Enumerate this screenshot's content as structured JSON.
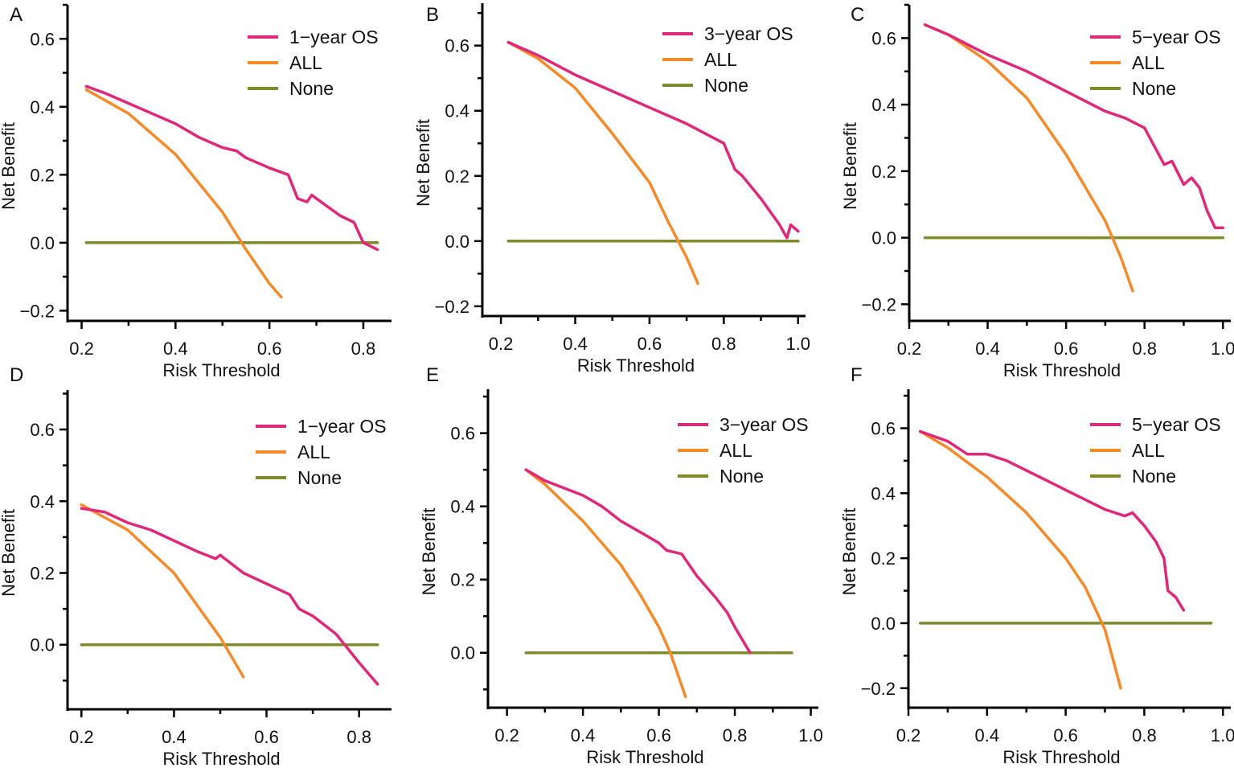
{
  "figure_title": "",
  "colors": {
    "model": "#e0287a",
    "all": "#f58a2a",
    "none": "#7f8a2e",
    "axis": "#000000"
  },
  "chart_data": [
    {
      "id": "A",
      "type": "line",
      "panel_label": "A",
      "xlabel": "Risk Threshold",
      "ylabel": "Net Benefit",
      "xlim": [
        0.17,
        0.86
      ],
      "ylim": [
        -0.23,
        0.7
      ],
      "xticks": [
        0.2,
        0.4,
        0.6,
        0.8
      ],
      "xtick_labels": [
        "0.2",
        "0.4",
        "0.6",
        "0.8"
      ],
      "yticks": [
        -0.2,
        0.0,
        0.2,
        0.4,
        0.6
      ],
      "ytick_labels": [
        "−0.2",
        "0.0",
        "0.2",
        "0.4",
        "0.6"
      ],
      "legend": [
        "1−year OS",
        "ALL",
        "None"
      ],
      "series": [
        {
          "name": "1−year OS",
          "key": "model",
          "x": [
            0.21,
            0.25,
            0.3,
            0.35,
            0.4,
            0.45,
            0.5,
            0.53,
            0.55,
            0.6,
            0.64,
            0.66,
            0.68,
            0.69,
            0.72,
            0.75,
            0.78,
            0.8,
            0.83
          ],
          "y": [
            0.46,
            0.44,
            0.41,
            0.38,
            0.35,
            0.31,
            0.28,
            0.27,
            0.25,
            0.22,
            0.2,
            0.13,
            0.12,
            0.14,
            0.11,
            0.08,
            0.06,
            0.0,
            -0.02
          ]
        },
        {
          "name": "ALL",
          "key": "all",
          "x": [
            0.21,
            0.3,
            0.4,
            0.5,
            0.55,
            0.6,
            0.625
          ],
          "y": [
            0.45,
            0.38,
            0.26,
            0.09,
            -0.02,
            -0.12,
            -0.16
          ]
        },
        {
          "name": "None",
          "key": "none",
          "x": [
            0.21,
            0.83
          ],
          "y": [
            0.0,
            0.0
          ]
        }
      ]
    },
    {
      "id": "B",
      "type": "line",
      "panel_label": "B",
      "xlabel": "Risk Threshold",
      "ylabel": "Net Benefit",
      "xlim": [
        0.15,
        1.02
      ],
      "ylim": [
        -0.23,
        0.73
      ],
      "xticks": [
        0.2,
        0.4,
        0.6,
        0.8,
        1.0
      ],
      "xtick_labels": [
        "0.2",
        "0.4",
        "0.6",
        "0.8",
        "1.0"
      ],
      "yticks": [
        -0.2,
        0.0,
        0.2,
        0.4,
        0.6
      ],
      "ytick_labels": [
        "−0.2",
        "0.0",
        "0.2",
        "0.4",
        "0.6"
      ],
      "legend": [
        "3−year OS",
        "ALL",
        "None"
      ],
      "series": [
        {
          "name": "3−year OS",
          "key": "model",
          "x": [
            0.22,
            0.3,
            0.4,
            0.5,
            0.6,
            0.7,
            0.75,
            0.8,
            0.83,
            0.85,
            0.9,
            0.95,
            0.97,
            0.98,
            1.0
          ],
          "y": [
            0.61,
            0.57,
            0.51,
            0.46,
            0.41,
            0.36,
            0.33,
            0.3,
            0.22,
            0.2,
            0.13,
            0.05,
            0.01,
            0.05,
            0.03
          ]
        },
        {
          "name": "ALL",
          "key": "all",
          "x": [
            0.22,
            0.3,
            0.4,
            0.5,
            0.6,
            0.65,
            0.7,
            0.73
          ],
          "y": [
            0.61,
            0.56,
            0.47,
            0.33,
            0.18,
            0.06,
            -0.05,
            -0.13
          ]
        },
        {
          "name": "None",
          "key": "none",
          "x": [
            0.22,
            1.0
          ],
          "y": [
            0.0,
            0.0
          ]
        }
      ]
    },
    {
      "id": "C",
      "type": "line",
      "panel_label": "C",
      "xlabel": "Risk Threshold",
      "ylabel": "Net Benefit",
      "xlim": [
        0.2,
        1.02
      ],
      "ylim": [
        -0.25,
        0.7
      ],
      "xticks": [
        0.2,
        0.4,
        0.6,
        0.8,
        1.0
      ],
      "xtick_labels": [
        "0.2",
        "0.4",
        "0.6",
        "0.8",
        "1.0"
      ],
      "yticks": [
        -0.2,
        0.0,
        0.2,
        0.4,
        0.6
      ],
      "ytick_labels": [
        "−0.2",
        "0.0",
        "0.2",
        "0.4",
        "0.6"
      ],
      "legend": [
        "5−year OS",
        "ALL",
        "None"
      ],
      "series": [
        {
          "name": "5−year OS",
          "key": "model",
          "x": [
            0.24,
            0.3,
            0.4,
            0.5,
            0.6,
            0.7,
            0.75,
            0.8,
            0.85,
            0.87,
            0.9,
            0.92,
            0.94,
            0.96,
            0.98,
            1.0
          ],
          "y": [
            0.64,
            0.61,
            0.55,
            0.5,
            0.44,
            0.38,
            0.36,
            0.33,
            0.22,
            0.23,
            0.16,
            0.18,
            0.15,
            0.08,
            0.03,
            0.03
          ]
        },
        {
          "name": "ALL",
          "key": "all",
          "x": [
            0.24,
            0.3,
            0.4,
            0.5,
            0.6,
            0.7,
            0.74,
            0.77
          ],
          "y": [
            0.64,
            0.61,
            0.53,
            0.42,
            0.25,
            0.05,
            -0.06,
            -0.16
          ]
        },
        {
          "name": "None",
          "key": "none",
          "x": [
            0.24,
            1.0
          ],
          "y": [
            0.0,
            0.0
          ]
        }
      ]
    },
    {
      "id": "D",
      "type": "line",
      "panel_label": "D",
      "xlabel": "Risk Threshold",
      "ylabel": "Net Benefit",
      "xlim": [
        0.17,
        0.87
      ],
      "ylim": [
        -0.18,
        0.71
      ],
      "xticks": [
        0.2,
        0.4,
        0.6,
        0.8
      ],
      "xtick_labels": [
        "0.2",
        "0.4",
        "0.6",
        "0.8"
      ],
      "yticks": [
        0.0,
        0.2,
        0.4,
        0.6
      ],
      "ytick_labels": [
        "0.0",
        "0.2",
        "0.4",
        "0.6"
      ],
      "legend": [
        "1−year OS",
        "ALL",
        "None"
      ],
      "series": [
        {
          "name": "1−year OS",
          "key": "model",
          "x": [
            0.2,
            0.25,
            0.3,
            0.35,
            0.4,
            0.45,
            0.49,
            0.5,
            0.51,
            0.55,
            0.6,
            0.65,
            0.67,
            0.7,
            0.75,
            0.8,
            0.84
          ],
          "y": [
            0.38,
            0.37,
            0.34,
            0.32,
            0.29,
            0.26,
            0.24,
            0.25,
            0.24,
            0.2,
            0.17,
            0.14,
            0.1,
            0.08,
            0.03,
            -0.05,
            -0.11
          ]
        },
        {
          "name": "ALL",
          "key": "all",
          "x": [
            0.2,
            0.3,
            0.4,
            0.5,
            0.55
          ],
          "y": [
            0.39,
            0.32,
            0.2,
            0.02,
            -0.09
          ]
        },
        {
          "name": "None",
          "key": "none",
          "x": [
            0.2,
            0.84
          ],
          "y": [
            0.0,
            0.0
          ]
        }
      ]
    },
    {
      "id": "E",
      "type": "line",
      "panel_label": "E",
      "xlabel": "Risk Threshold",
      "ylabel": "Net Benefit",
      "xlim": [
        0.15,
        1.02
      ],
      "ylim": [
        -0.15,
        0.72
      ],
      "xticks": [
        0.2,
        0.4,
        0.6,
        0.8,
        1.0
      ],
      "xtick_labels": [
        "0.2",
        "0.4",
        "0.6",
        "0.8",
        "1.0"
      ],
      "yticks": [
        0.0,
        0.2,
        0.4,
        0.6
      ],
      "ytick_labels": [
        "0.0",
        "0.2",
        "0.4",
        "0.6"
      ],
      "legend": [
        "3−year OS",
        "ALL",
        "None"
      ],
      "series": [
        {
          "name": "3−year OS",
          "key": "model",
          "x": [
            0.25,
            0.3,
            0.35,
            0.4,
            0.45,
            0.5,
            0.55,
            0.6,
            0.62,
            0.66,
            0.7,
            0.75,
            0.78,
            0.8,
            0.84
          ],
          "y": [
            0.5,
            0.47,
            0.45,
            0.43,
            0.4,
            0.36,
            0.33,
            0.3,
            0.28,
            0.27,
            0.21,
            0.15,
            0.11,
            0.07,
            0.0
          ]
        },
        {
          "name": "ALL",
          "key": "all",
          "x": [
            0.25,
            0.3,
            0.4,
            0.5,
            0.55,
            0.6,
            0.63,
            0.67
          ],
          "y": [
            0.5,
            0.46,
            0.36,
            0.24,
            0.16,
            0.07,
            0.0,
            -0.12
          ]
        },
        {
          "name": "None",
          "key": "none",
          "x": [
            0.25,
            0.95
          ],
          "y": [
            0.0,
            0.0
          ]
        }
      ]
    },
    {
      "id": "F",
      "type": "line",
      "panel_label": "F",
      "xlabel": "Risk Threshold",
      "ylabel": "Net Benefit",
      "xlim": [
        0.2,
        1.02
      ],
      "ylim": [
        -0.26,
        0.72
      ],
      "xticks": [
        0.2,
        0.4,
        0.6,
        0.8,
        1.0
      ],
      "xtick_labels": [
        "0.2",
        "0.4",
        "0.6",
        "0.8",
        "1.0"
      ],
      "yticks": [
        -0.2,
        0.0,
        0.2,
        0.4,
        0.6
      ],
      "ytick_labels": [
        "−0.2",
        "0.0",
        "0.2",
        "0.4",
        "0.6"
      ],
      "legend": [
        "5−year OS",
        "ALL",
        "None"
      ],
      "series": [
        {
          "name": "5−year OS",
          "key": "model",
          "x": [
            0.23,
            0.3,
            0.35,
            0.4,
            0.45,
            0.5,
            0.55,
            0.6,
            0.65,
            0.7,
            0.75,
            0.77,
            0.8,
            0.83,
            0.85,
            0.86,
            0.88,
            0.9
          ],
          "y": [
            0.59,
            0.56,
            0.52,
            0.52,
            0.5,
            0.47,
            0.44,
            0.41,
            0.38,
            0.35,
            0.33,
            0.34,
            0.3,
            0.25,
            0.2,
            0.1,
            0.08,
            0.04
          ]
        },
        {
          "name": "ALL",
          "key": "all",
          "x": [
            0.23,
            0.3,
            0.4,
            0.5,
            0.6,
            0.65,
            0.7,
            0.74
          ],
          "y": [
            0.59,
            0.54,
            0.45,
            0.34,
            0.2,
            0.11,
            -0.02,
            -0.2
          ]
        },
        {
          "name": "None",
          "key": "none",
          "x": [
            0.23,
            0.97
          ],
          "y": [
            0.0,
            0.0
          ]
        }
      ]
    }
  ]
}
